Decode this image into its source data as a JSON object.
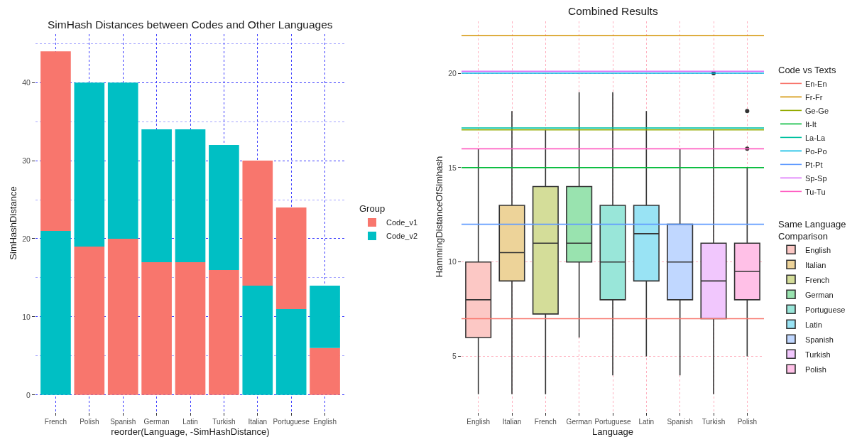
{
  "chart_data": [
    {
      "type": "bar",
      "title": "SimHash Distances between Codes and Other Languages",
      "xlabel": "reorder(Language, -SimHashDistance)",
      "ylabel": "SimHashDistance",
      "legend_title": "Group",
      "categories": [
        "French",
        "Polish",
        "Spanish",
        "German",
        "Latin",
        "Turkish",
        "Italian",
        "Portuguese",
        "English"
      ],
      "series": [
        {
          "name": "Code_v1",
          "color": "#f8766d",
          "values": [
            23,
            19,
            20,
            17,
            17,
            16,
            16,
            13,
            6
          ],
          "base": [
            21,
            0,
            0,
            0,
            0,
            0,
            14,
            11,
            0
          ]
        },
        {
          "name": "Code_v2",
          "color": "#00bfc4",
          "values": [
            21,
            21,
            20,
            17,
            17,
            16,
            14,
            11,
            8
          ],
          "base": [
            0,
            19,
            20,
            17,
            17,
            16,
            0,
            0,
            6
          ]
        }
      ],
      "ylim": [
        -2.2,
        46.2
      ],
      "yticks": [
        0,
        {
          "value": 5,
          "label": null
        },
        10,
        {
          "value": 15,
          "label": null
        },
        20,
        {
          "value": 25,
          "label": null
        },
        30,
        {
          "value": 35,
          "label": null
        },
        40,
        {
          "value": 45,
          "label": null
        }
      ],
      "grid": true,
      "legend": "right"
    },
    {
      "type": "box",
      "title": "Combined Results",
      "xlabel": "Language",
      "ylabel": "HammingDistanceOfSimhash",
      "legend_title": [
        "Code vs Texts",
        "Same Language Comparison"
      ],
      "categories": [
        "English",
        "Italian",
        "French",
        "German",
        "Portuguese",
        "Latin",
        "Spanish",
        "Turkish",
        "Polish"
      ],
      "series": [
        {
          "name": "English",
          "color": "#fcc8c5",
          "boxes": [
            {
              "low": 3,
              "q1": 6,
              "median": 8,
              "q3": 10,
              "high": 16
            },
            null,
            null,
            null,
            null,
            null,
            null,
            null,
            null
          ]
        },
        {
          "name": "Italian",
          "color": "#edd399",
          "boxes": [
            null,
            {
              "low": 3,
              "q1": 9,
              "median": 10.5,
              "q3": 13,
              "high": 18
            },
            null,
            null,
            null,
            null,
            null,
            null,
            null
          ]
        },
        {
          "name": "French",
          "color": "#d4dd99",
          "boxes": [
            null,
            null,
            {
              "low": 3,
              "q1": 7.25,
              "median": 11,
              "q3": 14,
              "high": 17
            },
            null,
            null,
            null,
            null,
            null,
            null
          ]
        },
        {
          "name": "German",
          "color": "#99e3af",
          "boxes": [
            null,
            null,
            null,
            {
              "low": 6,
              "q1": 10,
              "median": 11,
              "q3": 14,
              "high": 19
            },
            null,
            null,
            null,
            null,
            null
          ]
        },
        {
          "name": "Portuguese",
          "color": "#99e6d9",
          "boxes": [
            null,
            null,
            null,
            null,
            {
              "low": 4,
              "q1": 8,
              "median": 10,
              "q3": 13,
              "high": 19
            },
            null,
            null,
            null,
            null
          ]
        },
        {
          "name": "Latin",
          "color": "#99e3f4",
          "boxes": [
            null,
            null,
            null,
            null,
            null,
            {
              "low": 5,
              "q1": 9,
              "median": 11.5,
              "q3": 13,
              "high": 18
            },
            null,
            null,
            null
          ]
        },
        {
          "name": "Spanish",
          "color": "#c0d7ff",
          "boxes": [
            null,
            null,
            null,
            null,
            null,
            null,
            {
              "low": 4,
              "q1": 8,
              "median": 10,
              "q3": 12,
              "high": 16
            },
            null,
            null
          ]
        },
        {
          "name": "Turkish",
          "color": "#f1c7fd",
          "boxes": [
            null,
            null,
            null,
            null,
            null,
            null,
            null,
            {
              "low": 3,
              "q1": 7,
              "median": 9,
              "q3": 11,
              "high": 17,
              "outliers": [
                20
              ]
            },
            null
          ]
        },
        {
          "name": "Polish",
          "color": "#ffc0e7",
          "boxes": [
            null,
            null,
            null,
            null,
            null,
            null,
            null,
            null,
            {
              "low": 5,
              "q1": 8,
              "median": 9.5,
              "q3": 11,
              "high": 15,
              "outliers": [
                16,
                18
              ]
            }
          ]
        }
      ],
      "ref_lines": [
        {
          "axis": "y",
          "value": 7,
          "label": "En-En",
          "color": "#f8766d"
        },
        {
          "axis": "y",
          "value": 22,
          "label": "Fr-Fr",
          "color": "#d39200"
        },
        {
          "axis": "y",
          "value": 17,
          "label": "Ge-Ge",
          "color": "#93aa00"
        },
        {
          "axis": "y",
          "value": 15,
          "label": "It-It",
          "color": "#00ba38"
        },
        {
          "axis": "y",
          "value": 17.1,
          "label": "La-La",
          "color": "#00c19f"
        },
        {
          "axis": "y",
          "value": 20,
          "label": "Po-Po",
          "color": "#00b9e3"
        },
        {
          "axis": "y",
          "value": 12,
          "label": "Pt-Pt",
          "color": "#619cff"
        },
        {
          "axis": "y",
          "value": 20.1,
          "label": "Sp-Sp",
          "color": "#db72fb"
        },
        {
          "axis": "y",
          "value": 16,
          "label": "Tu-Tu",
          "color": "#ff61c3"
        }
      ],
      "ylim": [
        2.05,
        22.75
      ],
      "yticks": [
        5,
        10,
        15,
        20
      ],
      "grid": true,
      "legend": "right"
    }
  ]
}
